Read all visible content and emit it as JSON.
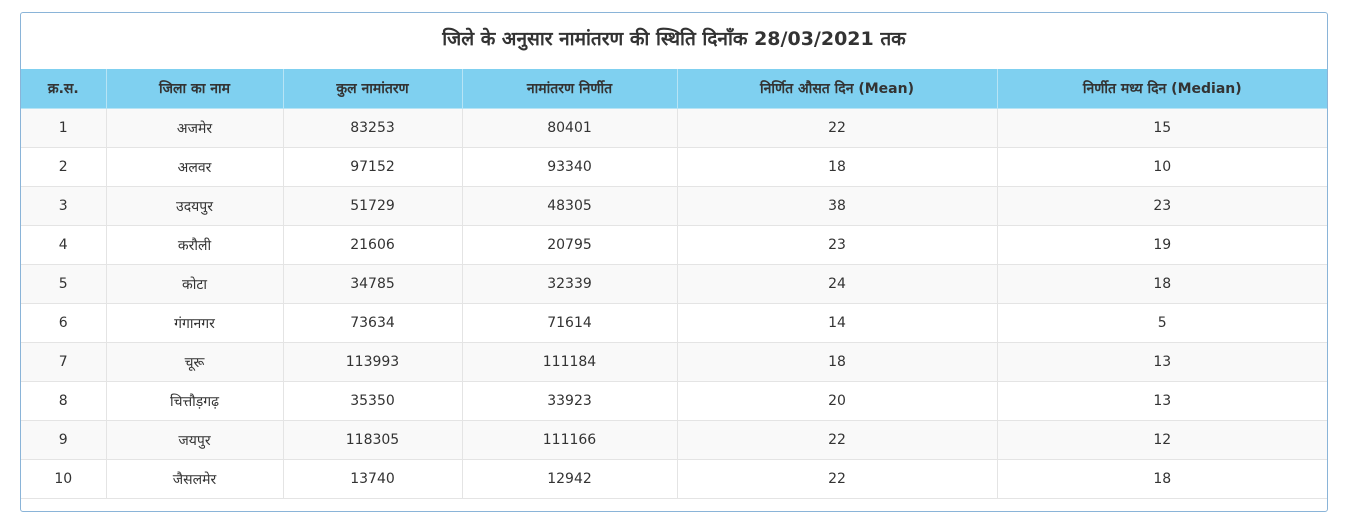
{
  "title": "जिले के अनुसार नामांतरण की स्थिति दिनाँक 28/03/2021 तक",
  "table": {
    "headers": [
      "क्र.स.",
      "जिला का नाम",
      "कुल नामांतरण",
      "नामांतरण निर्णीत",
      "निर्णित औसत दिन (Mean)",
      "निर्णीत मध्य दिन (Median)"
    ],
    "rows": [
      [
        "1",
        "अजमेर",
        "83253",
        "80401",
        "22",
        "15"
      ],
      [
        "2",
        "अलवर",
        "97152",
        "93340",
        "18",
        "10"
      ],
      [
        "3",
        "उदयपुर",
        "51729",
        "48305",
        "38",
        "23"
      ],
      [
        "4",
        "करौली",
        "21606",
        "20795",
        "23",
        "19"
      ],
      [
        "5",
        "कोटा",
        "34785",
        "32339",
        "24",
        "18"
      ],
      [
        "6",
        "गंगानगर",
        "73634",
        "71614",
        "14",
        "5"
      ],
      [
        "7",
        "चूरू",
        "113993",
        "111184",
        "18",
        "13"
      ],
      [
        "8",
        "चित्तौड़गढ़",
        "35350",
        "33923",
        "20",
        "13"
      ],
      [
        "9",
        "जयपुर",
        "118305",
        "111166",
        "22",
        "12"
      ],
      [
        "10",
        "जैसलमेर",
        "13740",
        "12942",
        "22",
        "18"
      ]
    ]
  }
}
